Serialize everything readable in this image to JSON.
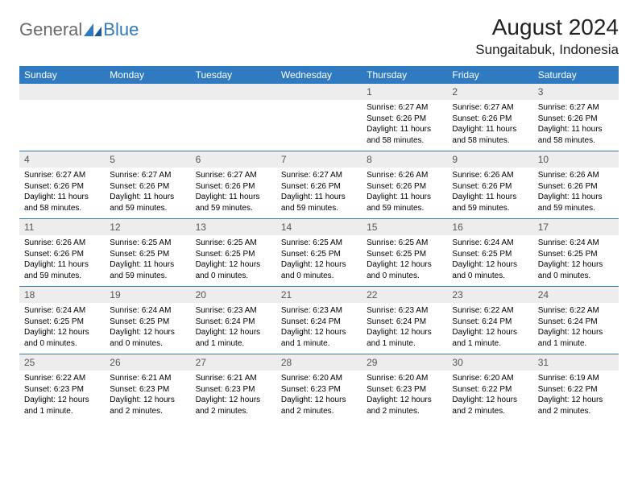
{
  "brand": {
    "general": "General",
    "blue": "Blue"
  },
  "title": "August 2024",
  "location": "Sungaitabuk, Indonesia",
  "colors": {
    "header_bg": "#2f7ac0",
    "header_fg": "#ffffff",
    "daynum_bg": "#ededed",
    "daynum_fg": "#555555",
    "text": "#000000",
    "logo_gray": "#6a6a6a",
    "logo_blue": "#2f7ac0"
  },
  "dow": [
    "Sunday",
    "Monday",
    "Tuesday",
    "Wednesday",
    "Thursday",
    "Friday",
    "Saturday"
  ],
  "weeks": [
    [
      null,
      null,
      null,
      null,
      {
        "n": "1",
        "sr": "Sunrise: 6:27 AM",
        "ss": "Sunset: 6:26 PM",
        "dl": "Daylight: 11 hours and 58 minutes."
      },
      {
        "n": "2",
        "sr": "Sunrise: 6:27 AM",
        "ss": "Sunset: 6:26 PM",
        "dl": "Daylight: 11 hours and 58 minutes."
      },
      {
        "n": "3",
        "sr": "Sunrise: 6:27 AM",
        "ss": "Sunset: 6:26 PM",
        "dl": "Daylight: 11 hours and 58 minutes."
      }
    ],
    [
      {
        "n": "4",
        "sr": "Sunrise: 6:27 AM",
        "ss": "Sunset: 6:26 PM",
        "dl": "Daylight: 11 hours and 58 minutes."
      },
      {
        "n": "5",
        "sr": "Sunrise: 6:27 AM",
        "ss": "Sunset: 6:26 PM",
        "dl": "Daylight: 11 hours and 59 minutes."
      },
      {
        "n": "6",
        "sr": "Sunrise: 6:27 AM",
        "ss": "Sunset: 6:26 PM",
        "dl": "Daylight: 11 hours and 59 minutes."
      },
      {
        "n": "7",
        "sr": "Sunrise: 6:27 AM",
        "ss": "Sunset: 6:26 PM",
        "dl": "Daylight: 11 hours and 59 minutes."
      },
      {
        "n": "8",
        "sr": "Sunrise: 6:26 AM",
        "ss": "Sunset: 6:26 PM",
        "dl": "Daylight: 11 hours and 59 minutes."
      },
      {
        "n": "9",
        "sr": "Sunrise: 6:26 AM",
        "ss": "Sunset: 6:26 PM",
        "dl": "Daylight: 11 hours and 59 minutes."
      },
      {
        "n": "10",
        "sr": "Sunrise: 6:26 AM",
        "ss": "Sunset: 6:26 PM",
        "dl": "Daylight: 11 hours and 59 minutes."
      }
    ],
    [
      {
        "n": "11",
        "sr": "Sunrise: 6:26 AM",
        "ss": "Sunset: 6:26 PM",
        "dl": "Daylight: 11 hours and 59 minutes."
      },
      {
        "n": "12",
        "sr": "Sunrise: 6:25 AM",
        "ss": "Sunset: 6:25 PM",
        "dl": "Daylight: 11 hours and 59 minutes."
      },
      {
        "n": "13",
        "sr": "Sunrise: 6:25 AM",
        "ss": "Sunset: 6:25 PM",
        "dl": "Daylight: 12 hours and 0 minutes."
      },
      {
        "n": "14",
        "sr": "Sunrise: 6:25 AM",
        "ss": "Sunset: 6:25 PM",
        "dl": "Daylight: 12 hours and 0 minutes."
      },
      {
        "n": "15",
        "sr": "Sunrise: 6:25 AM",
        "ss": "Sunset: 6:25 PM",
        "dl": "Daylight: 12 hours and 0 minutes."
      },
      {
        "n": "16",
        "sr": "Sunrise: 6:24 AM",
        "ss": "Sunset: 6:25 PM",
        "dl": "Daylight: 12 hours and 0 minutes."
      },
      {
        "n": "17",
        "sr": "Sunrise: 6:24 AM",
        "ss": "Sunset: 6:25 PM",
        "dl": "Daylight: 12 hours and 0 minutes."
      }
    ],
    [
      {
        "n": "18",
        "sr": "Sunrise: 6:24 AM",
        "ss": "Sunset: 6:25 PM",
        "dl": "Daylight: 12 hours and 0 minutes."
      },
      {
        "n": "19",
        "sr": "Sunrise: 6:24 AM",
        "ss": "Sunset: 6:25 PM",
        "dl": "Daylight: 12 hours and 0 minutes."
      },
      {
        "n": "20",
        "sr": "Sunrise: 6:23 AM",
        "ss": "Sunset: 6:24 PM",
        "dl": "Daylight: 12 hours and 1 minute."
      },
      {
        "n": "21",
        "sr": "Sunrise: 6:23 AM",
        "ss": "Sunset: 6:24 PM",
        "dl": "Daylight: 12 hours and 1 minute."
      },
      {
        "n": "22",
        "sr": "Sunrise: 6:23 AM",
        "ss": "Sunset: 6:24 PM",
        "dl": "Daylight: 12 hours and 1 minute."
      },
      {
        "n": "23",
        "sr": "Sunrise: 6:22 AM",
        "ss": "Sunset: 6:24 PM",
        "dl": "Daylight: 12 hours and 1 minute."
      },
      {
        "n": "24",
        "sr": "Sunrise: 6:22 AM",
        "ss": "Sunset: 6:24 PM",
        "dl": "Daylight: 12 hours and 1 minute."
      }
    ],
    [
      {
        "n": "25",
        "sr": "Sunrise: 6:22 AM",
        "ss": "Sunset: 6:23 PM",
        "dl": "Daylight: 12 hours and 1 minute."
      },
      {
        "n": "26",
        "sr": "Sunrise: 6:21 AM",
        "ss": "Sunset: 6:23 PM",
        "dl": "Daylight: 12 hours and 2 minutes."
      },
      {
        "n": "27",
        "sr": "Sunrise: 6:21 AM",
        "ss": "Sunset: 6:23 PM",
        "dl": "Daylight: 12 hours and 2 minutes."
      },
      {
        "n": "28",
        "sr": "Sunrise: 6:20 AM",
        "ss": "Sunset: 6:23 PM",
        "dl": "Daylight: 12 hours and 2 minutes."
      },
      {
        "n": "29",
        "sr": "Sunrise: 6:20 AM",
        "ss": "Sunset: 6:23 PM",
        "dl": "Daylight: 12 hours and 2 minutes."
      },
      {
        "n": "30",
        "sr": "Sunrise: 6:20 AM",
        "ss": "Sunset: 6:22 PM",
        "dl": "Daylight: 12 hours and 2 minutes."
      },
      {
        "n": "31",
        "sr": "Sunrise: 6:19 AM",
        "ss": "Sunset: 6:22 PM",
        "dl": "Daylight: 12 hours and 2 minutes."
      }
    ]
  ]
}
